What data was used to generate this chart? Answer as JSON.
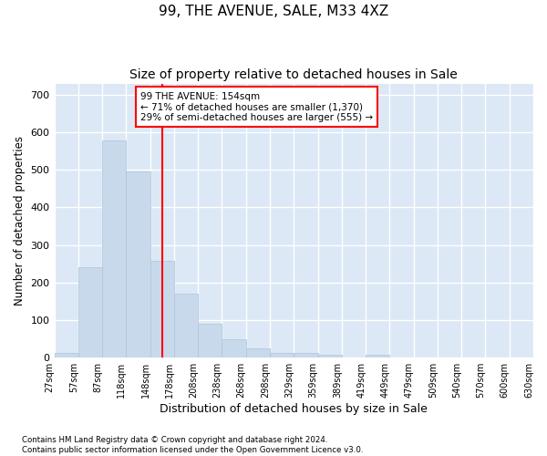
{
  "title1": "99, THE AVENUE, SALE, M33 4XZ",
  "title2": "Size of property relative to detached houses in Sale",
  "xlabel": "Distribution of detached houses by size in Sale",
  "ylabel": "Number of detached properties",
  "bar_values": [
    13,
    240,
    578,
    495,
    258,
    170,
    90,
    50,
    25,
    13,
    12,
    8,
    0,
    7,
    0,
    0,
    0,
    0,
    0,
    0
  ],
  "bin_labels": [
    "27sqm",
    "57sqm",
    "87sqm",
    "118sqm",
    "148sqm",
    "178sqm",
    "208sqm",
    "238sqm",
    "268sqm",
    "298sqm",
    "329sqm",
    "359sqm",
    "389sqm",
    "419sqm",
    "449sqm",
    "479sqm",
    "509sqm",
    "540sqm",
    "570sqm",
    "600sqm",
    "630sqm"
  ],
  "bar_color": "#c8d9ec",
  "bar_edge_color": "#adc4dd",
  "vline_x": 4.5,
  "vline_color": "red",
  "annotation_text": "99 THE AVENUE: 154sqm\n← 71% of detached houses are smaller (1,370)\n29% of semi-detached houses are larger (555) →",
  "annotation_box_color": "white",
  "annotation_box_edge": "red",
  "ylim": [
    0,
    730
  ],
  "yticks": [
    0,
    100,
    200,
    300,
    400,
    500,
    600,
    700
  ],
  "background_color": "#dce8f5",
  "footer": "Contains HM Land Registry data © Crown copyright and database right 2024.\nContains public sector information licensed under the Open Government Licence v3.0.",
  "title1_fontsize": 11,
  "title2_fontsize": 10,
  "xlabel_fontsize": 9,
  "ylabel_fontsize": 8.5
}
